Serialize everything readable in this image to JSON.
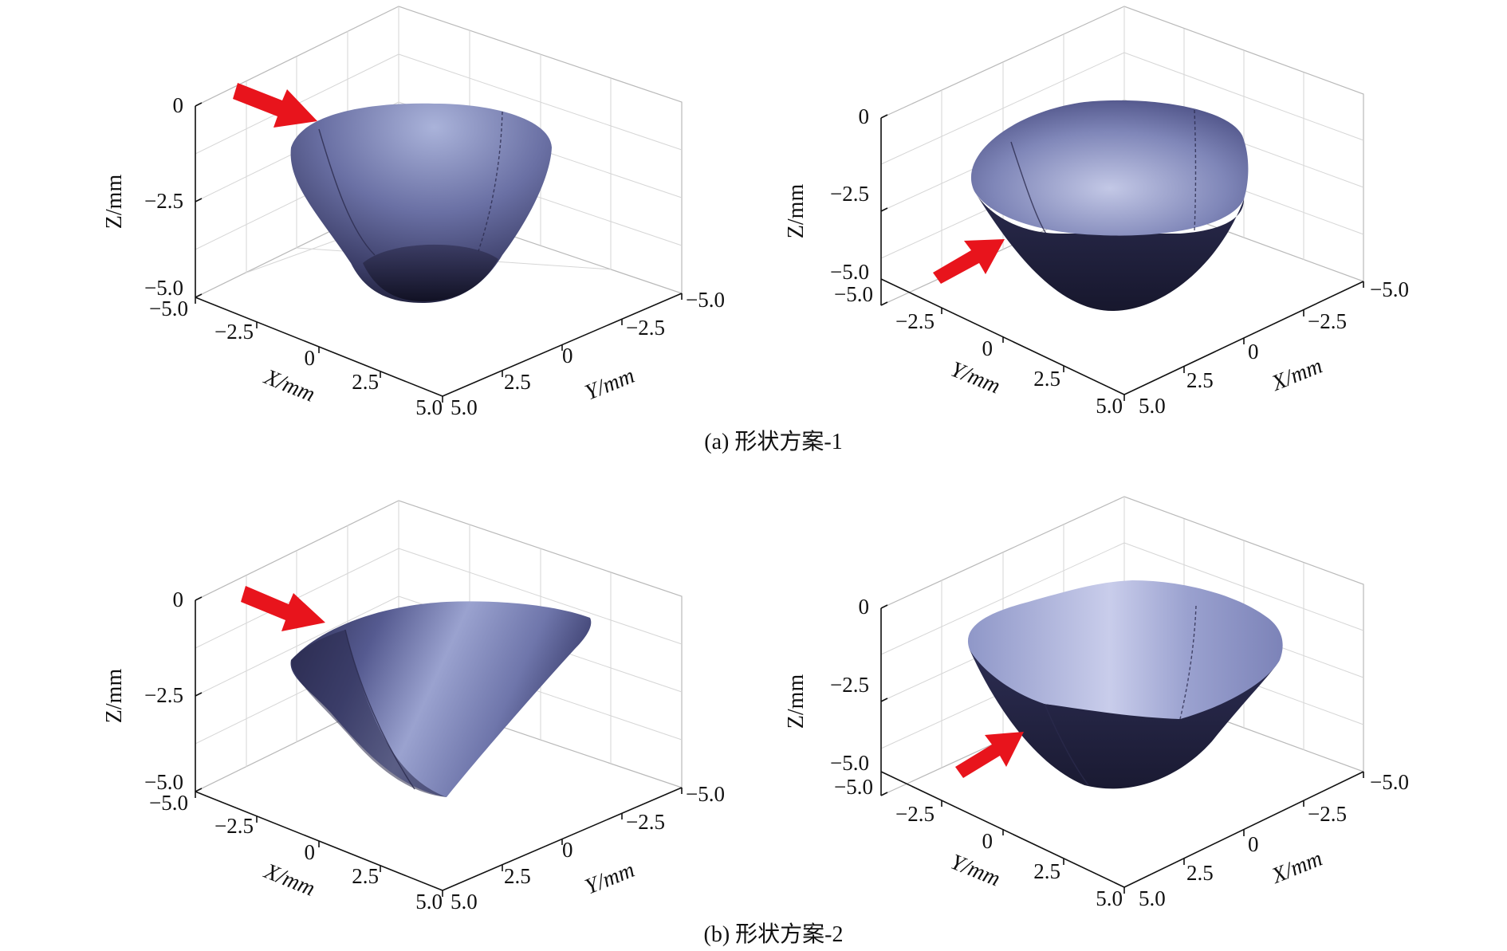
{
  "figure": {
    "captions": [
      "(a) 形状方案-1",
      "(b) 形状方案-2"
    ]
  },
  "colors": {
    "surface_light": "#a8b0d8",
    "surface_mid": "#5f6497",
    "surface_dark": "#1e1e3a",
    "arrow": "#e8141c",
    "axis": "#111111",
    "grid": "#d6d6d6"
  },
  "chart_data": [
    {
      "type": "surface3d",
      "panel": "a-left",
      "shape": "形状方案-1",
      "view": "front",
      "zlabel": "Z/mm",
      "zticks": [
        "0",
        "−2.5",
        "−5.0"
      ],
      "left_axis_label": "X/mm",
      "left_axis_ticks": [
        "−5.0",
        "−2.5",
        "0",
        "2.5",
        "5.0"
      ],
      "right_axis_label": "Y/mm",
      "right_axis_ticks": [
        "5.0",
        "2.5",
        "0",
        "−2.5",
        "−5.0"
      ],
      "xlim": [
        -5,
        5
      ],
      "ylim": [
        -5,
        5
      ],
      "zlim": [
        -5,
        0
      ],
      "annotation": "red arrow"
    },
    {
      "type": "surface3d",
      "panel": "a-right",
      "shape": "形状方案-1",
      "view": "rotated",
      "zlabel": "Z/mm",
      "zticks": [
        "0",
        "−2.5",
        "−5.0"
      ],
      "left_axis_label": "Y/mm",
      "left_axis_ticks": [
        "−5.0",
        "−2.5",
        "0",
        "2.5",
        "5.0"
      ],
      "right_axis_label": "X/mm",
      "right_axis_ticks": [
        "5.0",
        "2.5",
        "0",
        "−2.5",
        "−5.0"
      ],
      "xlim": [
        -5,
        5
      ],
      "ylim": [
        -5,
        5
      ],
      "zlim": [
        -5,
        0
      ],
      "annotation": "red arrow"
    },
    {
      "type": "surface3d",
      "panel": "b-left",
      "shape": "形状方案-2",
      "view": "front",
      "zlabel": "Z/mm",
      "zticks": [
        "0",
        "−2.5",
        "−5.0"
      ],
      "left_axis_label": "X/mm",
      "left_axis_ticks": [
        "−5.0",
        "−2.5",
        "0",
        "2.5",
        "5.0"
      ],
      "right_axis_label": "Y/mm",
      "right_axis_ticks": [
        "5.0",
        "2.5",
        "0",
        "−2.5",
        "−5.0"
      ],
      "xlim": [
        -5,
        5
      ],
      "ylim": [
        -5,
        5
      ],
      "zlim": [
        -5,
        0
      ],
      "annotation": "red arrow"
    },
    {
      "type": "surface3d",
      "panel": "b-right",
      "shape": "形状方案-2",
      "view": "rotated",
      "zlabel": "Z/mm",
      "zticks": [
        "0",
        "−2.5",
        "−5.0"
      ],
      "left_axis_label": "Y/mm",
      "left_axis_ticks": [
        "−5.0",
        "−2.5",
        "0",
        "2.5",
        "5.0"
      ],
      "right_axis_label": "X/mm",
      "right_axis_ticks": [
        "5.0",
        "2.5",
        "0",
        "−2.5",
        "−5.0"
      ],
      "xlim": [
        -5,
        5
      ],
      "ylim": [
        -5,
        5
      ],
      "zlim": [
        -5,
        0
      ],
      "annotation": "red arrow"
    }
  ]
}
